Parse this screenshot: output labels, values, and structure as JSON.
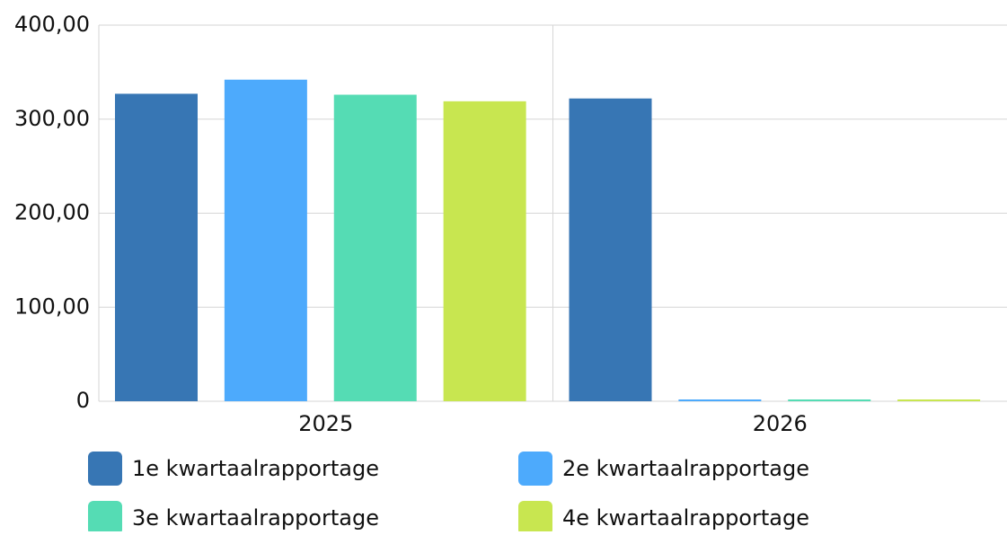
{
  "chart_data": {
    "type": "bar",
    "categories": [
      "2025",
      "2026"
    ],
    "series": [
      {
        "name": "1e kwartaalrapportage",
        "color": "#3776b4",
        "values": [
          327,
          322
        ]
      },
      {
        "name": "2e kwartaalrapportage",
        "color": "#4daafc",
        "values": [
          342,
          0
        ]
      },
      {
        "name": "3e kwartaalrapportage",
        "color": "#55dcb4",
        "values": [
          326,
          0
        ]
      },
      {
        "name": "4e kwartaalrapportage",
        "color": "#c8e650",
        "values": [
          319,
          0
        ]
      }
    ],
    "ylim": [
      0,
      400
    ],
    "yticks": [
      0,
      {
        "value": 100,
        "label": "100,00"
      },
      {
        "value": 200,
        "label": "200,00"
      },
      {
        "value": 300,
        "label": "300,00"
      },
      {
        "value": 400,
        "label": "400,00"
      }
    ],
    "grid": true
  }
}
